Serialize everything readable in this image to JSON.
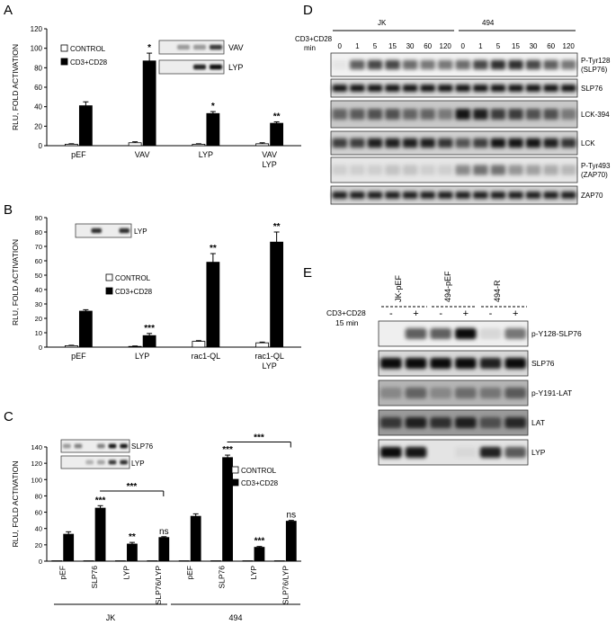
{
  "chart_data": [
    {
      "panel": "A",
      "type": "bar",
      "ylabel": "RLU, FOLD ACTIVATION",
      "ylim": [
        0,
        120
      ],
      "yticks": [
        0,
        20,
        40,
        60,
        80,
        100,
        120
      ],
      "categories": [
        "pEF",
        "VAV",
        "LYP",
        "VAV\nLYP"
      ],
      "series": [
        {
          "name": "CONTROL",
          "values": [
            1.5,
            3,
            1.5,
            2
          ],
          "errors": [
            0.5,
            1,
            0.5,
            1
          ]
        },
        {
          "name": "CD3+CD28",
          "values": [
            41,
            87,
            33,
            23
          ],
          "errors": [
            4,
            8,
            2,
            1.5
          ]
        }
      ],
      "annotations": [
        "",
        "*",
        "*",
        "**"
      ],
      "blot_labels": [
        "VAV",
        "LYP"
      ],
      "legend_position": "top-left"
    },
    {
      "panel": "B",
      "type": "bar",
      "ylabel": "RLU, FOLD ACTIVATION",
      "ylim": [
        0,
        90
      ],
      "yticks": [
        0,
        10,
        20,
        30,
        40,
        50,
        60,
        70,
        80,
        90
      ],
      "categories": [
        "pEF",
        "LYP",
        "rac1-QL",
        "rac1-QL\nLYP"
      ],
      "series": [
        {
          "name": "CONTROL",
          "values": [
            1,
            0.5,
            4,
            3
          ],
          "errors": [
            0.3,
            0.3,
            0.5,
            0.5
          ]
        },
        {
          "name": "CD3+CD28",
          "values": [
            25,
            8,
            59,
            73
          ],
          "errors": [
            1,
            1.5,
            6,
            7
          ]
        }
      ],
      "annotations": [
        "",
        "***",
        "**",
        "**"
      ],
      "blot_labels": [
        "LYP"
      ],
      "legend_position": "top-left"
    },
    {
      "panel": "C",
      "type": "bar",
      "ylabel": "RLU, FOLD ACTIVATION",
      "ylim": [
        0,
        140
      ],
      "yticks": [
        0,
        20,
        40,
        60,
        80,
        100,
        120,
        140
      ],
      "categories": [
        "pEF",
        "SLP76",
        "LYP",
        "SLP76/LYP",
        "pEF",
        "SLP76",
        "LYP",
        "SLP76/LYP"
      ],
      "groups": [
        "JK",
        "494"
      ],
      "series": [
        {
          "name": "CONTROL",
          "values": [
            0.5,
            0.5,
            0.5,
            0.5,
            0.5,
            0.5,
            0.5,
            0.5
          ],
          "errors": [
            0,
            0,
            0,
            0,
            0,
            0,
            0,
            0
          ]
        },
        {
          "name": "CD3+CD28",
          "values": [
            33,
            65,
            21,
            29,
            55,
            127,
            17,
            49
          ],
          "errors": [
            3,
            3,
            2,
            1,
            3,
            3,
            1,
            1
          ]
        }
      ],
      "annotations": [
        "",
        "***",
        "**",
        "ns",
        "",
        "***",
        "***",
        "ns"
      ],
      "bracket_labels": [
        "***",
        "***"
      ],
      "blot_labels": [
        "SLP76",
        "LYP"
      ],
      "legend_position": "right"
    }
  ],
  "panels": {
    "A": {
      "letter": "A"
    },
    "B": {
      "letter": "B"
    },
    "C": {
      "letter": "C"
    },
    "D": {
      "letter": "D",
      "groups": [
        "JK",
        "494"
      ],
      "stim_label": "CD3+CD28\nmin",
      "timepoints": [
        "0",
        "1",
        "5",
        "15",
        "30",
        "60",
        "120",
        "0",
        "1",
        "5",
        "15",
        "30",
        "60",
        "120"
      ],
      "blots": [
        "P-Tyr128\n(SLP76)",
        "SLP76",
        "LCK-394",
        "LCK",
        "P-Tyr493\n(ZAP70)",
        "ZAP70"
      ]
    },
    "E": {
      "letter": "E",
      "groups": [
        "JK-pEF",
        "494-pEF",
        "494-R"
      ],
      "stim_label": "CD3+CD28\n15 min",
      "lane_marks": [
        "-",
        "+",
        "-",
        "+",
        "-",
        "+"
      ],
      "blots": [
        "p-Y128-SLP76",
        "SLP76",
        "p-Y191-LAT",
        "LAT",
        "LYP"
      ]
    }
  }
}
